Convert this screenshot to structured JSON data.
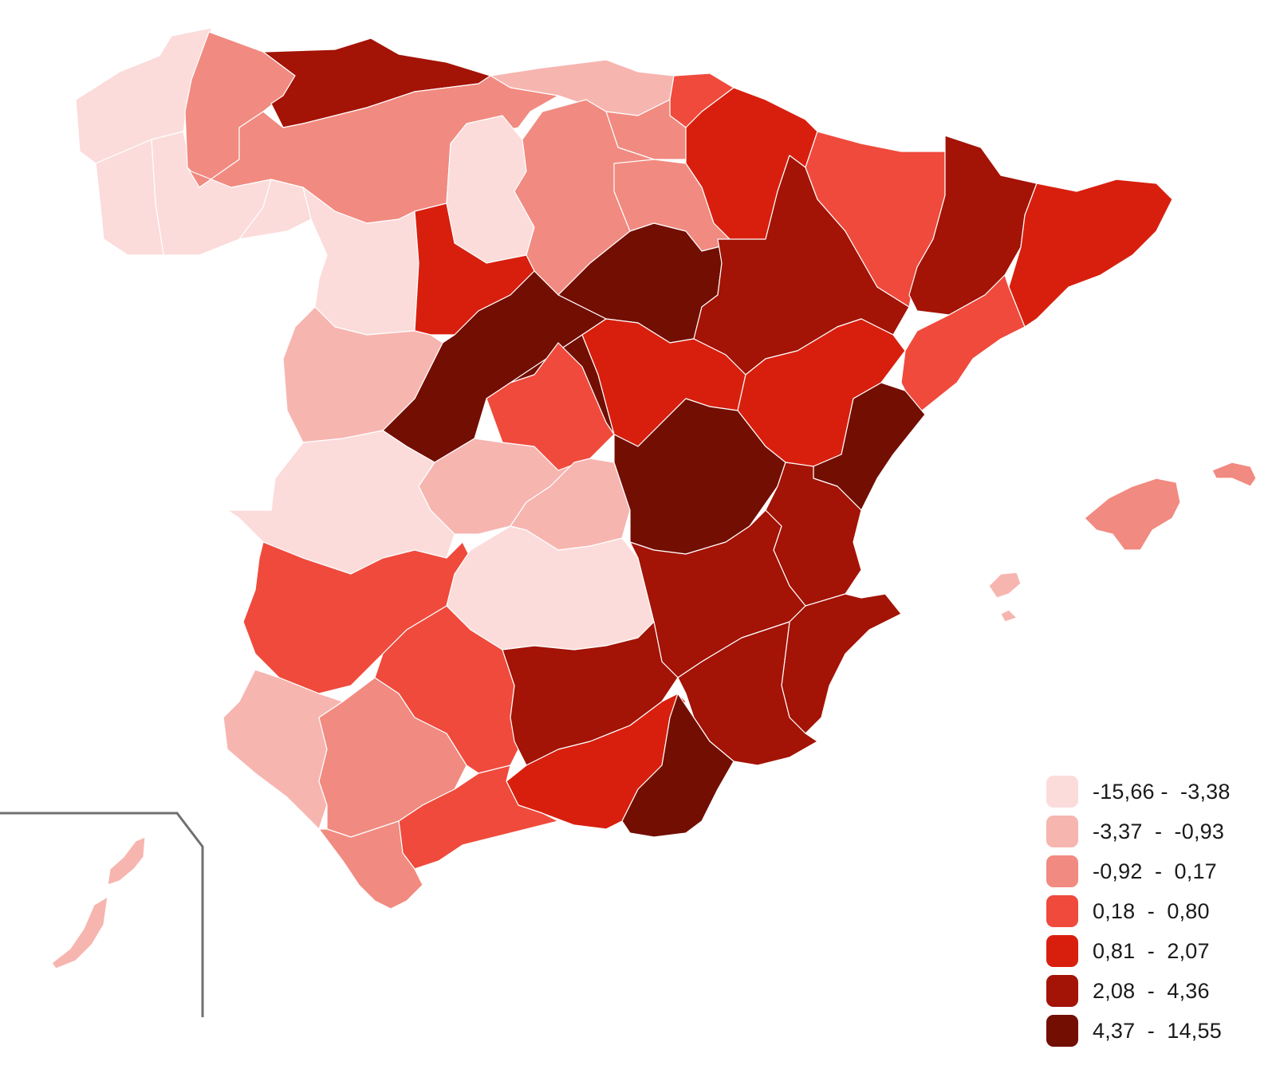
{
  "legend": {
    "classes": [
      {
        "label": "-15,66 -  -3,38",
        "color": "#fbdcdb"
      },
      {
        "label": "-3,37  -  -0,93",
        "color": "#f7b5b0"
      },
      {
        "label": "-0,92  -  0,17",
        "color": "#f18a80"
      },
      {
        "label": "0,18  -  0,80",
        "color": "#ef4a3c"
      },
      {
        "label": "0,81  -  2,07",
        "color": "#d81f0e"
      },
      {
        "label": "2,08  -  4,36",
        "color": "#a31306"
      },
      {
        "label": "4,37  -  14,55",
        "color": "#730e03"
      }
    ]
  },
  "map": {
    "regions": [
      {
        "id": "a-coruna",
        "class": 0
      },
      {
        "id": "lugo",
        "class": 0
      },
      {
        "id": "pontevedra",
        "class": 0
      },
      {
        "id": "ourense",
        "class": 0
      },
      {
        "id": "asturias",
        "class": 2
      },
      {
        "id": "cantabria",
        "class": 5
      },
      {
        "id": "bizkaia",
        "class": 1
      },
      {
        "id": "gipuzkoa",
        "class": 3
      },
      {
        "id": "araba",
        "class": 2
      },
      {
        "id": "navarra",
        "class": 4
      },
      {
        "id": "leon",
        "class": 2
      },
      {
        "id": "palencia",
        "class": 0
      },
      {
        "id": "burgos",
        "class": 2
      },
      {
        "id": "zamora",
        "class": 0
      },
      {
        "id": "valladolid",
        "class": 4
      },
      {
        "id": "soria",
        "class": 6
      },
      {
        "id": "la-rioja",
        "class": 2
      },
      {
        "id": "segovia-avila",
        "class": 6
      },
      {
        "id": "salamanca",
        "class": 1
      },
      {
        "id": "madrid",
        "class": 6
      },
      {
        "id": "guadalajara",
        "class": 4
      },
      {
        "id": "zaragoza",
        "class": 5
      },
      {
        "id": "huesca",
        "class": 3
      },
      {
        "id": "teruel",
        "class": 4
      },
      {
        "id": "lleida",
        "class": 5
      },
      {
        "id": "girona-barcelona",
        "class": 4
      },
      {
        "id": "tarragona",
        "class": 3
      },
      {
        "id": "caceres",
        "class": 0
      },
      {
        "id": "toledo",
        "class": 1
      },
      {
        "id": "toledo-east",
        "class": 3
      },
      {
        "id": "cuenca",
        "class": 1
      },
      {
        "id": "cuenca-big",
        "class": 6
      },
      {
        "id": "castellon",
        "class": 6
      },
      {
        "id": "valencia",
        "class": 5
      },
      {
        "id": "badajoz",
        "class": 3
      },
      {
        "id": "ciudad-real",
        "class": 0
      },
      {
        "id": "albacete",
        "class": 5
      },
      {
        "id": "alicante",
        "class": 5
      },
      {
        "id": "huelva",
        "class": 1
      },
      {
        "id": "sevilla",
        "class": 2
      },
      {
        "id": "cordoba",
        "class": 3
      },
      {
        "id": "jaen",
        "class": 5
      },
      {
        "id": "granada",
        "class": 4
      },
      {
        "id": "murcia",
        "class": 5
      },
      {
        "id": "almeria",
        "class": 6
      },
      {
        "id": "malaga",
        "class": 3
      },
      {
        "id": "cadiz",
        "class": 2
      },
      {
        "id": "mallorca",
        "class": 2
      },
      {
        "id": "menorca",
        "class": 2
      },
      {
        "id": "ibiza",
        "class": 1
      },
      {
        "id": "lanzarote-fuerteventura",
        "class": 1
      }
    ]
  }
}
